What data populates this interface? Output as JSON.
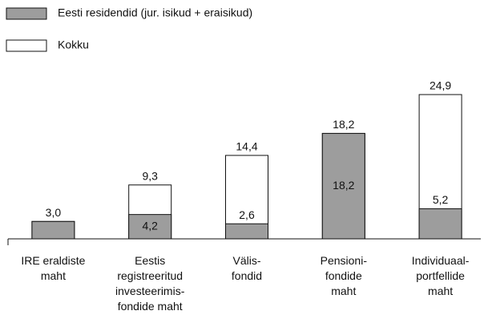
{
  "chart_data": {
    "type": "bar",
    "categories": [
      [
        "IRE eraldiste",
        "maht"
      ],
      [
        "Eestis",
        "registreeritud",
        "investeerimis-",
        "fondide maht"
      ],
      [
        "Välis-",
        "fondid"
      ],
      [
        "Pensioni-",
        "fondide",
        "maht"
      ],
      [
        "Individuaal-",
        "portfellide",
        "maht"
      ]
    ],
    "series": [
      {
        "name": "Kokku",
        "color": "#ffffff",
        "values": [
          3.0,
          9.3,
          14.4,
          18.2,
          24.9
        ],
        "value_labels": [
          "3,0",
          "9,3",
          "14,4",
          "18,2",
          "24,9"
        ]
      },
      {
        "name": "Eesti residendid (jur. isikud + eraisikud)",
        "color": "#9d9d9d",
        "values": [
          3.0,
          4.2,
          2.6,
          18.2,
          5.2
        ],
        "value_labels": [
          null,
          "4,2",
          "2,6",
          "18,2",
          "5,2"
        ]
      }
    ]
  }
}
